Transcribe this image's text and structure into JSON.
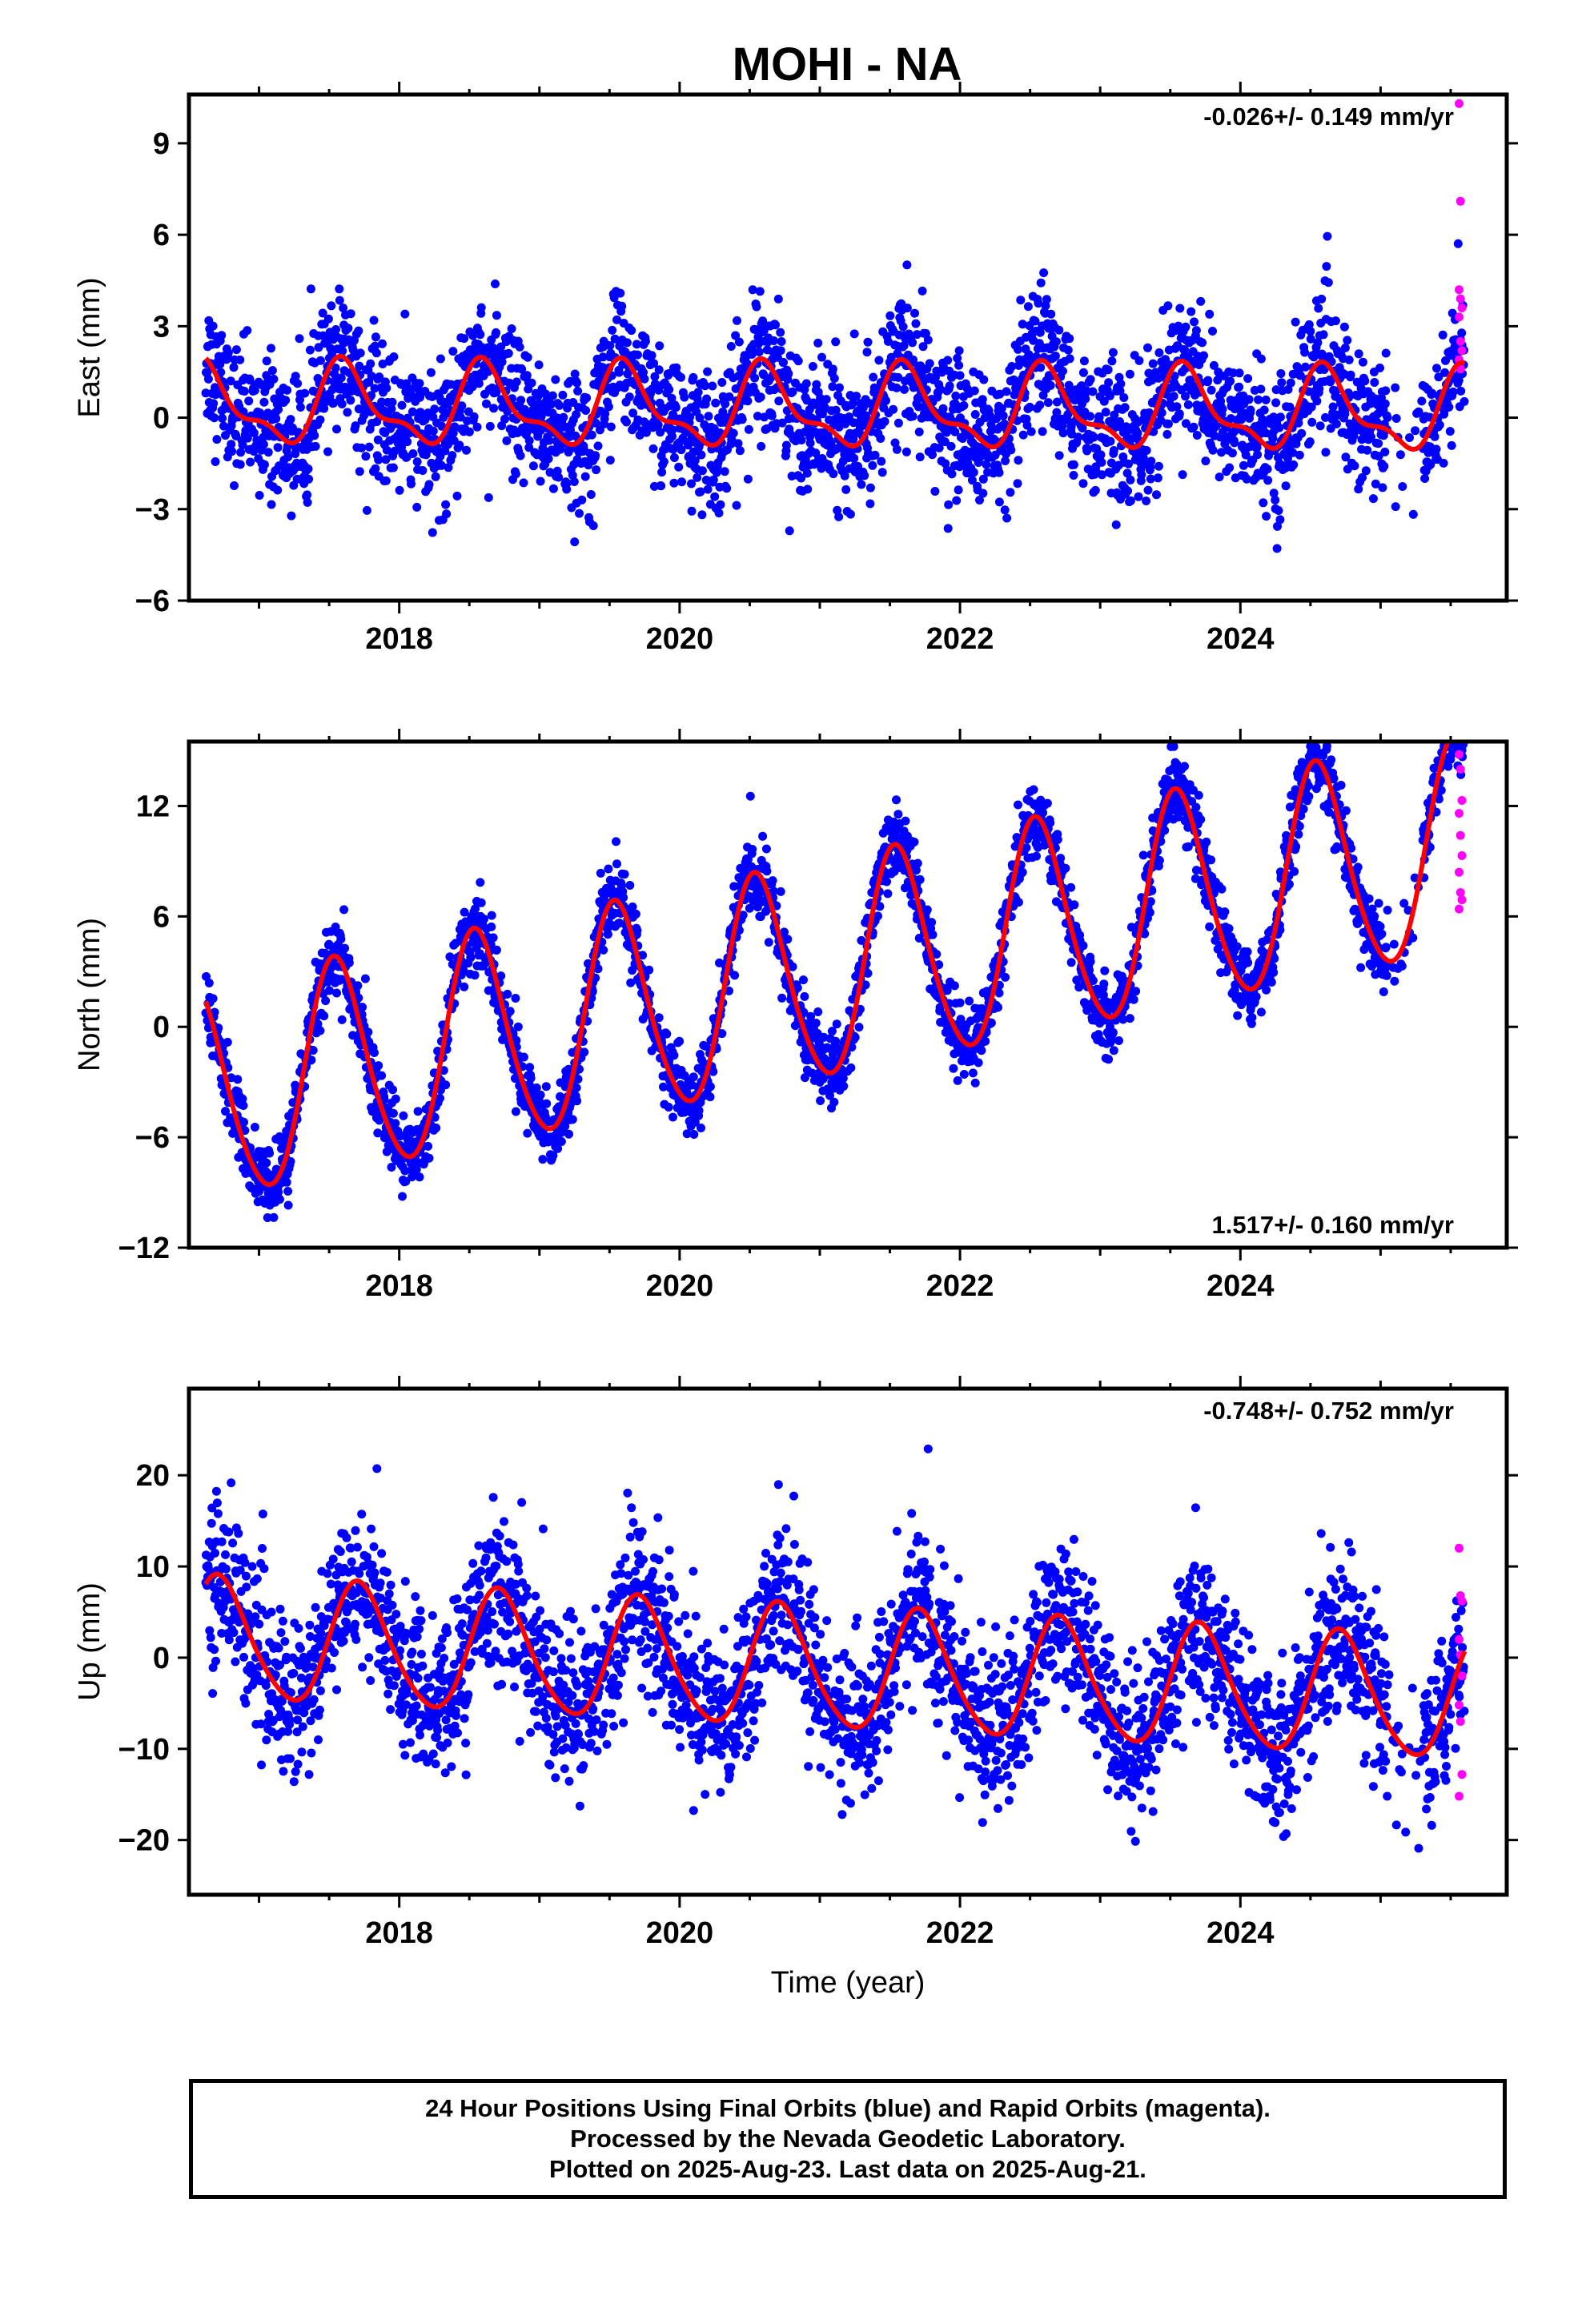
{
  "title": "MOHI - NA",
  "colors": {
    "final": "#0000ff",
    "rapid": "#ff00ff",
    "model": "#ff0000",
    "frame": "#000000"
  },
  "footer": {
    "line1": "24 Hour Positions Using Final Orbits (blue) and Rapid Orbits (magenta).",
    "line2": "Processed by the Nevada Geodetic Laboratory.",
    "line3": "Plotted on 2025-Aug-23. Last data on 2025-Aug-21."
  },
  "chart_data": [
    {
      "type": "scatter",
      "name": "east",
      "ylabel": "East (mm)",
      "xlabel": "",
      "xlim": [
        2016.5,
        2025.9
      ],
      "ylim": [
        -6,
        10.6
      ],
      "xticks": [
        2018,
        2020,
        2022,
        2024
      ],
      "yticks": [
        -6,
        -3,
        0,
        3,
        6,
        9
      ],
      "rate_text": "-0.026+/- 0.149 mm/yr",
      "rate_position": "top-right",
      "model": {
        "start": 2016.62,
        "end": 2025.6,
        "offset": 0.4,
        "trend": -0.026,
        "annual_amp": 1.2,
        "semiannual_amp": 0.5,
        "phase_year": 0.62,
        "noise": 1.1
      },
      "rapid_points": [
        [
          2025.56,
          10.3
        ],
        [
          2025.57,
          7.1
        ],
        [
          2025.56,
          4.2
        ],
        [
          2025.57,
          3.9
        ],
        [
          2025.58,
          3.6
        ],
        [
          2025.56,
          3.3
        ],
        [
          2025.57,
          2.5
        ],
        [
          2025.58,
          2.2
        ],
        [
          2025.56,
          1.9
        ],
        [
          2025.57,
          1.6
        ]
      ]
    },
    {
      "type": "scatter",
      "name": "north",
      "ylabel": "North (mm)",
      "xlabel": "",
      "xlim": [
        2016.5,
        2025.9
      ],
      "ylim": [
        -12,
        15.5
      ],
      "xticks": [
        2018,
        2020,
        2022,
        2024
      ],
      "yticks": [
        -12,
        -6,
        0,
        6,
        12
      ],
      "rate_text": "1.517+/- 0.160 mm/yr",
      "rate_position": "bottom-right",
      "model": {
        "start": 2016.62,
        "end": 2025.6,
        "offset": -3.8,
        "trend": 1.517,
        "annual_amp": 5.8,
        "semiannual_amp": 0.6,
        "phase_year": 0.55,
        "noise": 1.0
      },
      "rapid_points": [
        [
          2025.56,
          14.8
        ],
        [
          2025.57,
          14.0
        ],
        [
          2025.58,
          12.3
        ],
        [
          2025.56,
          11.6
        ],
        [
          2025.57,
          10.4
        ],
        [
          2025.58,
          9.3
        ],
        [
          2025.56,
          8.4
        ],
        [
          2025.57,
          7.3
        ],
        [
          2025.58,
          6.9
        ],
        [
          2025.56,
          6.4
        ]
      ]
    },
    {
      "type": "scatter",
      "name": "up",
      "ylabel": "Up (mm)",
      "xlabel": "Time (year)",
      "xlim": [
        2016.5,
        2025.9
      ],
      "ylim": [
        -26,
        29.5
      ],
      "xticks": [
        2018,
        2020,
        2022,
        2024
      ],
      "yticks": [
        -20,
        -10,
        0,
        10,
        20
      ],
      "rate_text": "-0.748+/- 0.752 mm/yr",
      "rate_position": "top-right",
      "model": {
        "start": 2016.62,
        "end": 2025.6,
        "offset": 2.0,
        "trend": -0.748,
        "annual_amp": 6.6,
        "semiannual_amp": 0.8,
        "phase_year": 0.72,
        "noise": 4.3
      },
      "rapid_points": [
        [
          2025.56,
          12.0
        ],
        [
          2025.57,
          6.8
        ],
        [
          2025.58,
          6.2
        ],
        [
          2025.56,
          2.0
        ],
        [
          2025.57,
          0.3
        ],
        [
          2025.58,
          -2.0
        ],
        [
          2025.56,
          -5.2
        ],
        [
          2025.57,
          -7.0
        ],
        [
          2025.58,
          -12.8
        ],
        [
          2025.56,
          -15.2
        ]
      ]
    }
  ]
}
